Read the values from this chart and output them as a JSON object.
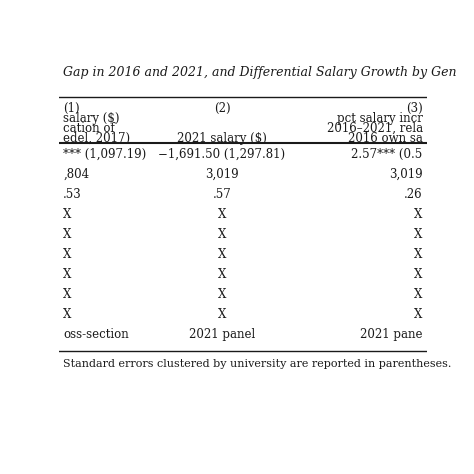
{
  "title": "Gap in 2016 and 2021, and Differential Salary Growth by Gen",
  "col_headers": [
    "(1)",
    "(2)",
    "(3)"
  ],
  "col1_subheaders": [
    "salary ($)",
    "cation of",
    "edel, 2017)"
  ],
  "col2_subheader": "2021 salary ($)",
  "col3_subheaders": [
    "pct salary incr",
    "2016–2021, rela",
    "2016 own sa"
  ],
  "rows": [
    [
      "*** (1,097.19)",
      "−1,691.50 (1,297.81)",
      "2.57*** (0.5"
    ],
    [
      ",804",
      "3,019",
      "3,019"
    ],
    [
      ".53",
      ".57",
      ".26"
    ],
    [
      "X",
      "X",
      "X"
    ],
    [
      "X",
      "X",
      "X"
    ],
    [
      "X",
      "X",
      "X"
    ],
    [
      "X",
      "X",
      "X"
    ],
    [
      "X",
      "X",
      "X"
    ],
    [
      "X",
      "X",
      "X"
    ],
    [
      "oss-section",
      "2021 panel",
      "2021 pane"
    ]
  ],
  "footnote": "Standard errors clustered by university are reported in parentheses.",
  "bg_color": "#ffffff",
  "text_color": "#1a1a1a",
  "font_size": 8.5
}
